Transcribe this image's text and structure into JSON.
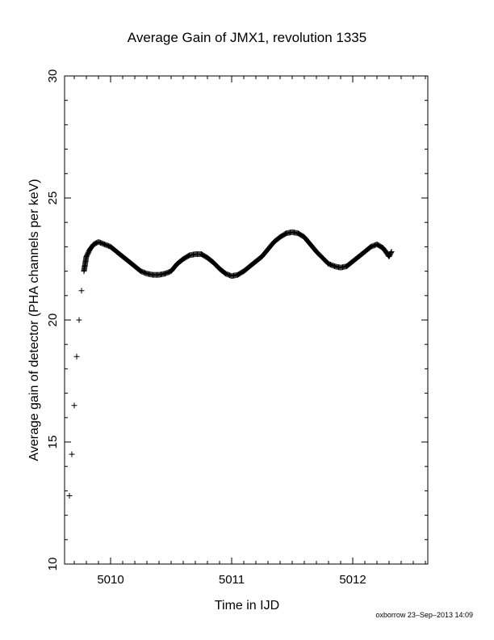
{
  "chart_data": {
    "type": "scatter",
    "title": "Average Gain of JMX1, revolution 1335",
    "xlabel": "Time in IJD",
    "ylabel": "Average gain of detector (PHA channels per keV)",
    "xlim": [
      5009.62,
      5012.62
    ],
    "ylim": [
      10,
      30
    ],
    "xticks": [
      "5010",
      "5011",
      "5012"
    ],
    "yticks": [
      "10",
      "15",
      "20",
      "25",
      "30"
    ],
    "grid": false,
    "legend": "none",
    "marker": "plus",
    "marker_color": "#000000",
    "series": [
      {
        "x": [
          5009.66,
          5009.68,
          5009.7,
          5009.72,
          5009.74,
          5009.76,
          5009.78,
          5009.8,
          5009.83,
          5009.86,
          5009.9,
          5009.95,
          5010.0,
          5010.05,
          5010.1,
          5010.15,
          5010.2,
          5010.25,
          5010.3,
          5010.35,
          5010.4,
          5010.45,
          5010.5,
          5010.55,
          5010.6,
          5010.65,
          5010.7,
          5010.75,
          5010.8,
          5010.85,
          5010.9,
          5010.95,
          5011.0,
          5011.05,
          5011.1,
          5011.15,
          5011.2,
          5011.25,
          5011.3,
          5011.35,
          5011.4,
          5011.45,
          5011.5,
          5011.55,
          5011.6,
          5011.65,
          5011.7,
          5011.75,
          5011.8,
          5011.85,
          5011.9,
          5011.95,
          5012.0,
          5012.05,
          5012.1,
          5012.15,
          5012.2,
          5012.25,
          5012.28,
          5012.3,
          5012.32
        ],
        "y": [
          12.8,
          14.5,
          16.5,
          18.5,
          20.0,
          21.2,
          22.0,
          22.6,
          22.9,
          23.1,
          23.2,
          23.1,
          23.0,
          22.8,
          22.6,
          22.4,
          22.2,
          22.0,
          21.9,
          21.85,
          21.85,
          21.9,
          22.0,
          22.3,
          22.5,
          22.65,
          22.7,
          22.7,
          22.55,
          22.35,
          22.1,
          21.9,
          21.8,
          21.85,
          22.0,
          22.2,
          22.4,
          22.6,
          22.9,
          23.2,
          23.4,
          23.55,
          23.6,
          23.55,
          23.4,
          23.1,
          22.8,
          22.55,
          22.3,
          22.2,
          22.15,
          22.2,
          22.4,
          22.6,
          22.8,
          23.0,
          23.1,
          22.95,
          22.75,
          22.6,
          22.8
        ]
      }
    ]
  },
  "footer": {
    "credit": "oxborrow 23–Sep–2013 14:09"
  }
}
